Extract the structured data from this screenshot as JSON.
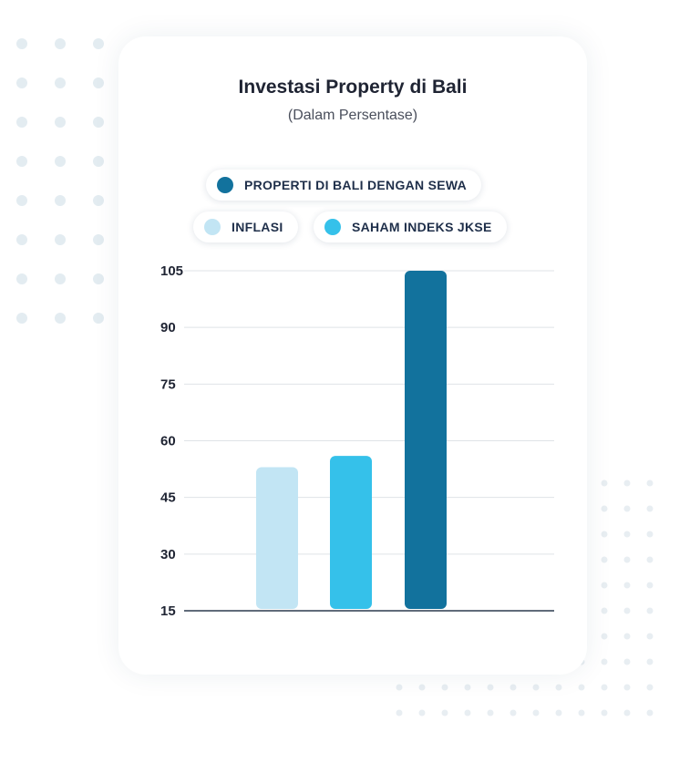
{
  "chart_data": {
    "type": "bar",
    "title": "Investasi Property di Bali",
    "subtitle": "(Dalam Persentase)",
    "categories": [
      "INFLASI",
      "SAHAM INDEKS JKSE",
      "PROPERTI DI BALI DENGAN SEWA"
    ],
    "values": [
      53,
      56,
      105
    ],
    "colors": [
      "#c2e5f4",
      "#35c1ea",
      "#12729d"
    ],
    "legend": [
      {
        "label": "PROPERTI DI BALI DENGAN SEWA",
        "color": "#12729d"
      },
      {
        "label": "INFLASI",
        "color": "#c2e5f4"
      },
      {
        "label": "SAHAM INDEKS JKSE",
        "color": "#35c1ea"
      }
    ],
    "legend_position": "top",
    "ylim": [
      15,
      105
    ],
    "yticks": [
      105,
      90,
      75,
      60,
      45,
      30,
      15
    ],
    "grid": true,
    "xlabel": "",
    "ylabel": ""
  }
}
